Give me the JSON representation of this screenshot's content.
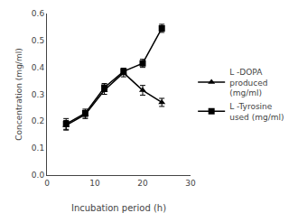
{
  "chart_data": {
    "type": "line",
    "x_label": "Incubation period (h)",
    "y_label": "Concentration (mg/ml)",
    "x": [
      4,
      8,
      12,
      16,
      20,
      24
    ],
    "series": [
      {
        "name": "L -DOPA\nproduced\n(mg/ml)",
        "color": "#000000",
        "marker": "triangle-up",
        "line_style": "solid",
        "values": [
          0.185,
          0.225,
          0.315,
          0.38,
          0.315,
          0.27
        ],
        "errors": [
          0.018,
          0.015,
          0.015,
          0.015,
          0.018,
          0.015
        ]
      },
      {
        "name": "L -Tyrosine\nused (mg/ml)",
        "color": "#000000",
        "marker": "square",
        "line_style": "solid",
        "values": [
          0.19,
          0.23,
          0.325,
          0.385,
          0.415,
          0.545
        ],
        "errors": [
          0.02,
          0.015,
          0.015,
          0.012,
          0.015,
          0.015
        ]
      }
    ],
    "xlim": [
      0,
      30
    ],
    "ylim": [
      0,
      0.6
    ],
    "xticks": [
      0,
      10,
      20,
      30
    ],
    "yticks": [
      {
        "value": 0,
        "label": "0.0"
      },
      0.1,
      0.2,
      0.3,
      0.4,
      0.5,
      0.6
    ],
    "grid": false,
    "legend": "right"
  }
}
